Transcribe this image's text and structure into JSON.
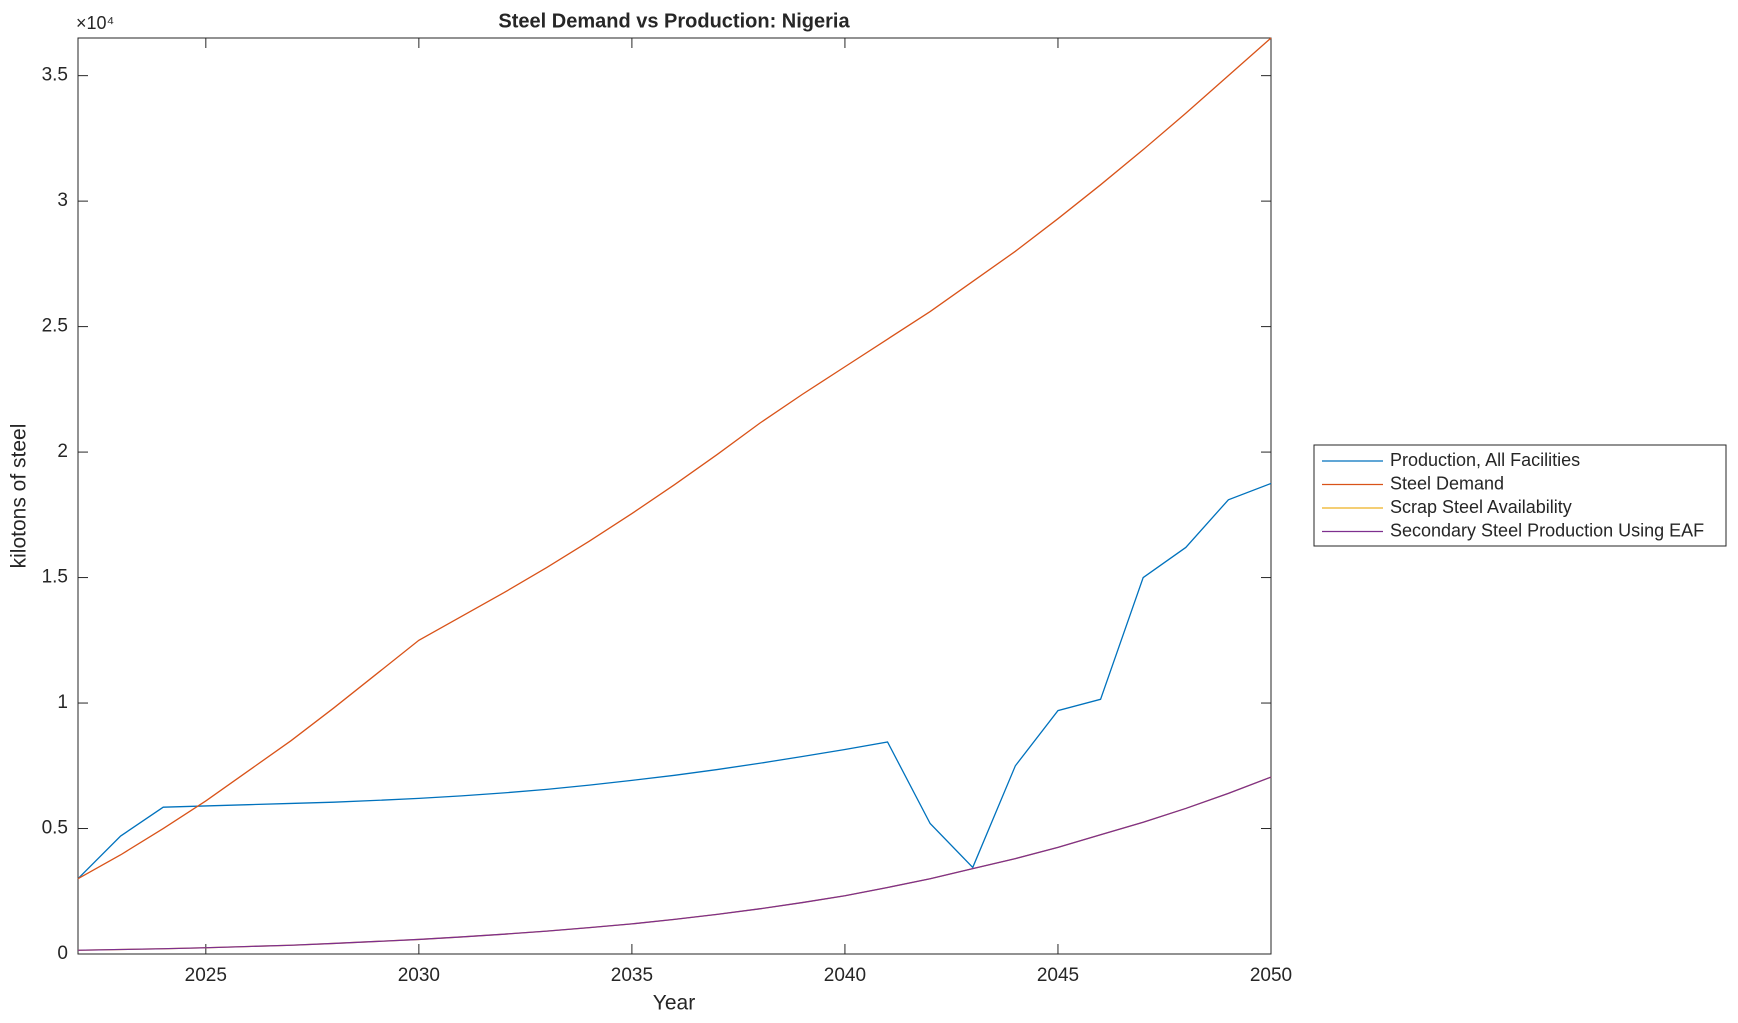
{
  "chart_data": {
    "type": "line",
    "title": "Steel Demand vs Production: Nigeria",
    "x_label": "Year",
    "y_label": "kilotons of steel",
    "y_multiplier": "×10⁴",
    "x": [
      2022,
      2023,
      2024,
      2025,
      2026,
      2027,
      2028,
      2029,
      2030,
      2031,
      2032,
      2033,
      2034,
      2035,
      2036,
      2037,
      2038,
      2039,
      2040,
      2041,
      2042,
      2043,
      2044,
      2045,
      2046,
      2047,
      2048,
      2049,
      2050
    ],
    "series": [
      {
        "name": "Production, All Facilities",
        "color": "#0072bd",
        "values": [
          3000,
          4700,
          5850,
          5900,
          5950,
          6000,
          6050,
          6120,
          6200,
          6300,
          6420,
          6560,
          6730,
          6920,
          7120,
          7350,
          7600,
          7870,
          8150,
          8450,
          5200,
          3450,
          7500,
          9700,
          10150,
          15000,
          16200,
          18100,
          18750
        ]
      },
      {
        "name": "Steel Demand",
        "color": "#d95319",
        "values": [
          3000,
          3950,
          5000,
          6100,
          7300,
          8500,
          9800,
          11150,
          12500,
          13450,
          14400,
          15400,
          16450,
          17550,
          18700,
          19900,
          21150,
          22300,
          23400,
          24500,
          25600,
          26800,
          28000,
          29300,
          30650,
          32050,
          33500,
          35000,
          36500
        ]
      },
      {
        "name": "Scrap Steel Availability",
        "color": "#edb120",
        "values": [
          150,
          180,
          210,
          250,
          300,
          350,
          420,
          500,
          580,
          680,
          790,
          910,
          1050,
          1200,
          1380,
          1580,
          1800,
          2050,
          2320,
          2650,
          3000,
          3400,
          3800,
          4250,
          4750,
          5250,
          5800,
          6400,
          7050
        ]
      },
      {
        "name": "Secondary Steel Production Using EAF",
        "color": "#7e2f8e",
        "values": [
          150,
          180,
          210,
          250,
          300,
          350,
          420,
          500,
          580,
          680,
          790,
          910,
          1050,
          1200,
          1380,
          1580,
          1800,
          2050,
          2320,
          2650,
          3000,
          3400,
          3800,
          4250,
          4750,
          5250,
          5800,
          6400,
          7050
        ]
      }
    ],
    "xlim": [
      2022,
      2050
    ],
    "xticks": [
      2025,
      2030,
      2035,
      2040,
      2045,
      2050
    ],
    "ylim": [
      0,
      36500
    ],
    "yticks": [
      {
        "value": 0,
        "label": "0"
      },
      {
        "value": 5000,
        "label": "0.5"
      },
      {
        "value": 10000,
        "label": "1"
      },
      {
        "value": 15000,
        "label": "1.5"
      },
      {
        "value": 20000,
        "label": "2"
      },
      {
        "value": 25000,
        "label": "2.5"
      },
      {
        "value": 30000,
        "label": "3"
      },
      {
        "value": 35000,
        "label": "3.5"
      }
    ],
    "grid": false,
    "legend_position": "right"
  }
}
